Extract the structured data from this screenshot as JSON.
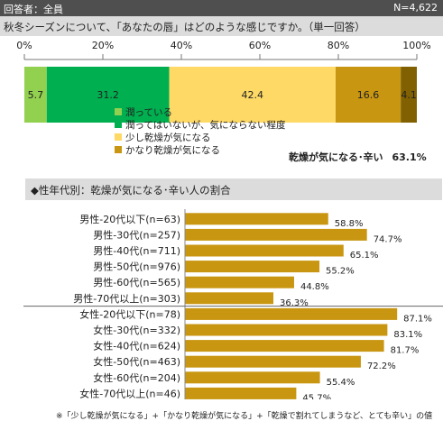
{
  "header": {
    "respondents": "回答者：全員",
    "n": "N=4,622"
  },
  "question": "秋冬シーズンについて、「あなたの唇」はどのような感じですか。（単一回答）",
  "summary": {
    "label": "乾燥が気になる･辛い",
    "value": "63.1%"
  },
  "section_title": "◆性年代別：乾燥が気になる･辛い人の割合",
  "footnote": "※「少し乾燥が気になる」+「かなり乾燥が気になる」+「乾燥で割れてしまうなど、とても辛い」の値",
  "chart_data": [
    {
      "type": "bar",
      "orientation": "horizontal-stacked-100",
      "axis_ticks": [
        "0%",
        "20%",
        "40%",
        "60%",
        "80%",
        "100%"
      ],
      "series": [
        {
          "name": "潤っている",
          "value": 5.7,
          "label": "5.7",
          "color": "#92d050"
        },
        {
          "name": "潤ってはいないが、気にならない程度",
          "value": 31.2,
          "label": "31.2",
          "color": "#00b050"
        },
        {
          "name": "少し乾燥が気になる",
          "value": 42.4,
          "label": "42.4",
          "color": "#ffd966"
        },
        {
          "name": "かなり乾燥が気になる",
          "value": 16.6,
          "label": "16.6",
          "color": "#c89611"
        },
        {
          "name": "",
          "value": 4.1,
          "label": "4.1",
          "color": "#806000"
        }
      ]
    },
    {
      "type": "bar",
      "orientation": "horizontal",
      "color": "#c89611",
      "xlim": [
        0,
        100
      ],
      "categories": [
        "男性-20代以下(n=63)",
        "男性-30代(n=257)",
        "男性-40代(n=711)",
        "男性-50代(n=976)",
        "男性-60代(n=565)",
        "男性-70代以上(n=303)",
        "女性-20代以下(n=78)",
        "女性-30代(n=332)",
        "女性-40代(n=624)",
        "女性-50代(n=463)",
        "女性-60代(n=204)",
        "女性-70代以上(n=46)"
      ],
      "values": [
        58.8,
        74.7,
        65.1,
        55.2,
        44.8,
        36.3,
        87.1,
        83.1,
        81.7,
        72.2,
        55.4,
        45.7
      ],
      "labels": [
        "58.8%",
        "74.7%",
        "65.1%",
        "55.2%",
        "44.8%",
        "36.3%",
        "87.1%",
        "83.1%",
        "81.7%",
        "72.2%",
        "55.4%",
        "45.7%"
      ]
    }
  ]
}
